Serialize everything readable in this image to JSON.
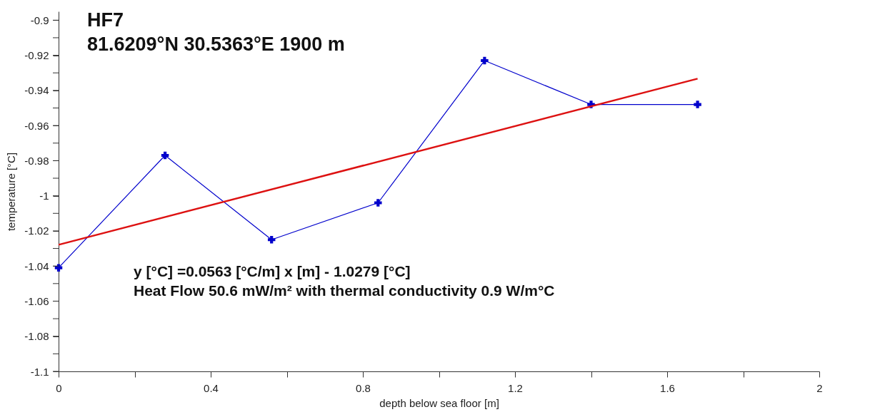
{
  "chart_data": {
    "type": "line",
    "title": "HF7",
    "subtitle": "81.6209°N  30.5363°E  1900 m",
    "xlabel": "depth below sea floor [m]",
    "ylabel": "temperature [°C]",
    "x": [
      0,
      0.28,
      0.56,
      0.84,
      1.12,
      1.4,
      1.68
    ],
    "series": [
      {
        "color": "#0000cc",
        "marker": "cross",
        "values": [
          -1.041,
          -0.977,
          -1.025,
          -1.004,
          -0.923,
          -0.948,
          -0.948
        ]
      },
      {
        "type": "line",
        "x": [
          0,
          1.68
        ],
        "color": "#dd1111",
        "marker": "none",
        "values": [
          -1.0279,
          -0.9333
        ]
      }
    ],
    "xlim": [
      0,
      2
    ],
    "xticks": [
      0,
      {
        "value": 0.2,
        "label": null
      },
      0.4,
      {
        "value": 0.6,
        "label": null
      },
      0.8,
      {
        "value": 1.0,
        "label": null
      },
      1.2,
      {
        "value": 1.4,
        "label": null
      },
      1.6,
      {
        "value": 1.8,
        "label": null
      },
      2
    ],
    "ylim": [
      -1.1,
      -0.895
    ],
    "yticks": [
      -1.1,
      {
        "value": -1.09,
        "label": null
      },
      -1.08,
      {
        "value": -1.07,
        "label": null
      },
      -1.06,
      {
        "value": -1.05,
        "label": null
      },
      -1.04,
      {
        "value": -1.03,
        "label": null
      },
      -1.02,
      {
        "value": -1.01,
        "label": null
      },
      -1,
      {
        "value": -0.99,
        "label": null
      },
      -0.98,
      {
        "value": -0.97,
        "label": null
      },
      -0.96,
      {
        "value": -0.95,
        "label": null
      },
      -0.94,
      {
        "value": -0.93,
        "label": null
      },
      -0.92,
      {
        "value": -0.91,
        "label": null
      },
      -0.9
    ],
    "annotations": [
      "y [°C] =0.0563 [°C/m] x [m] - 1.0279 [°C]",
      "Heat Flow 50.6 mW/m² with thermal conductivity 0.9 W/m°C"
    ],
    "grid": false
  }
}
